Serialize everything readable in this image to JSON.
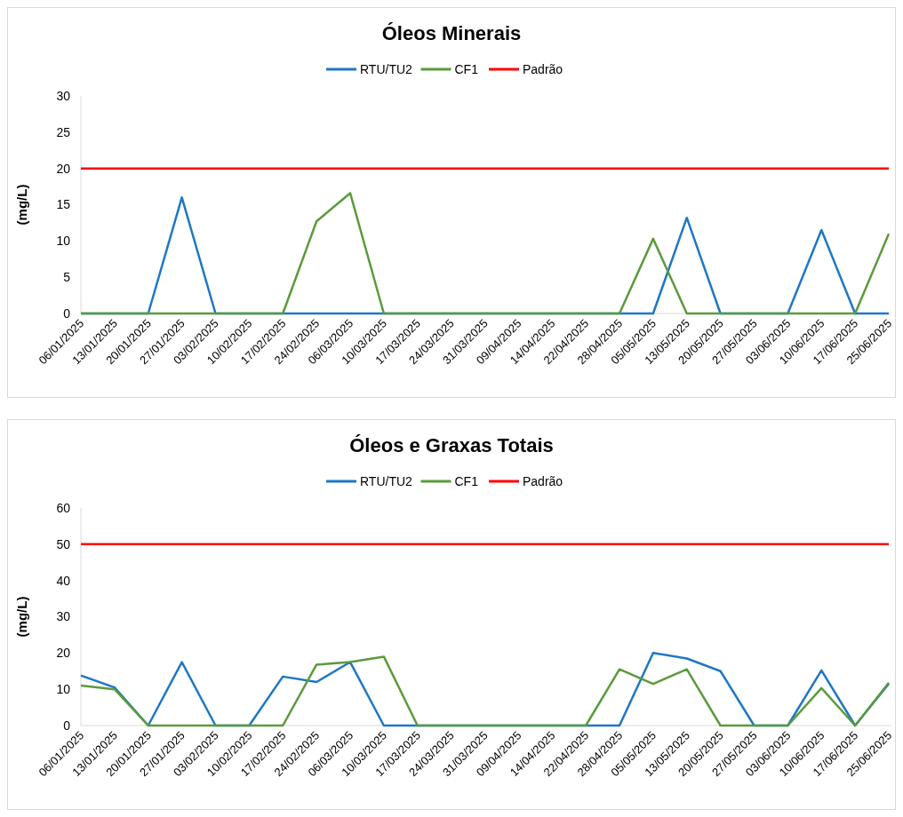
{
  "chart_data": [
    {
      "type": "line",
      "title": "Óleos Minerais",
      "ylabel": "(mg/L)",
      "categories": [
        "06/01/2025",
        "13/01/2025",
        "20/01/2025",
        "27/01/2025",
        "03/02/2025",
        "10/02/2025",
        "17/02/2025",
        "24/02/2025",
        "06/03/2025",
        "10/03/2025",
        "17/03/2025",
        "24/03/2025",
        "31/03/2025",
        "09/04/2025",
        "14/04/2025",
        "22/04/2025",
        "28/04/2025",
        "05/05/2025",
        "13/05/2025",
        "20/05/2025",
        "27/05/2025",
        "03/06/2025",
        "10/06/2025",
        "17/06/2025",
        "25/06/2025"
      ],
      "ylim": [
        0,
        30
      ],
      "yticks": [
        0,
        5,
        10,
        15,
        20,
        25,
        30
      ],
      "legend": "top",
      "grid": false,
      "marker": "none",
      "line_style": "solid",
      "series": [
        {
          "name": "RTU/TU2",
          "color": "#1f77c4",
          "values": [
            0,
            0,
            0,
            16,
            0,
            0,
            0,
            0,
            0,
            0,
            0,
            0,
            0,
            0,
            0,
            0,
            0,
            0,
            13.2,
            0,
            0,
            0,
            11.5,
            0,
            0
          ]
        },
        {
          "name": "CF1",
          "color": "#5b9a3c",
          "values": [
            0,
            0,
            0,
            0,
            0,
            0,
            0,
            12.7,
            16.6,
            0,
            0,
            0,
            0,
            0,
            0,
            0,
            0,
            10.3,
            0,
            0,
            0,
            0,
            0,
            0,
            11
          ]
        },
        {
          "name": "Padrão",
          "color": "#ff0000",
          "values": [
            20,
            20,
            20,
            20,
            20,
            20,
            20,
            20,
            20,
            20,
            20,
            20,
            20,
            20,
            20,
            20,
            20,
            20,
            20,
            20,
            20,
            20,
            20,
            20,
            20
          ]
        }
      ]
    },
    {
      "type": "line",
      "title": "Óleos e Graxas Totais",
      "ylabel": "(mg/L)",
      "categories": [
        "06/01/2025",
        "13/01/2025",
        "20/01/2025",
        "27/01/2025",
        "03/02/2025",
        "10/02/2025",
        "17/02/2025",
        "24/02/2025",
        "06/03/2025",
        "10/03/2025",
        "17/03/2025",
        "24/03/2025",
        "31/03/2025",
        "09/04/2025",
        "14/04/2025",
        "22/04/2025",
        "28/04/2025",
        "05/05/2025",
        "13/05/2025",
        "20/05/2025",
        "27/05/2025",
        "03/06/2025",
        "10/06/2025",
        "17/06/2025",
        "25/06/2025"
      ],
      "ylim": [
        0,
        60
      ],
      "yticks": [
        0,
        10,
        20,
        30,
        40,
        50,
        60
      ],
      "legend": "top",
      "grid": false,
      "marker": "none",
      "line_style": "solid",
      "series": [
        {
          "name": "RTU/TU2",
          "color": "#1f77c4",
          "values": [
            13.8,
            10.5,
            0,
            17.5,
            0,
            0,
            13.5,
            12,
            17.5,
            0,
            0,
            0,
            0,
            0,
            0,
            0,
            0,
            20,
            18.5,
            15,
            0,
            0,
            15.2,
            0,
            11.5
          ]
        },
        {
          "name": "CF1",
          "color": "#5b9a3c",
          "values": [
            11,
            10,
            0,
            0,
            0,
            0,
            0,
            16.8,
            17.5,
            19,
            0,
            0,
            0,
            0,
            0,
            0,
            15.5,
            11.5,
            15.5,
            0,
            0,
            0,
            10.3,
            0,
            11.8
          ]
        },
        {
          "name": "Padrão",
          "color": "#ff0000",
          "values": [
            50,
            50,
            50,
            50,
            50,
            50,
            50,
            50,
            50,
            50,
            50,
            50,
            50,
            50,
            50,
            50,
            50,
            50,
            50,
            50,
            50,
            50,
            50,
            50,
            50
          ]
        }
      ]
    }
  ]
}
